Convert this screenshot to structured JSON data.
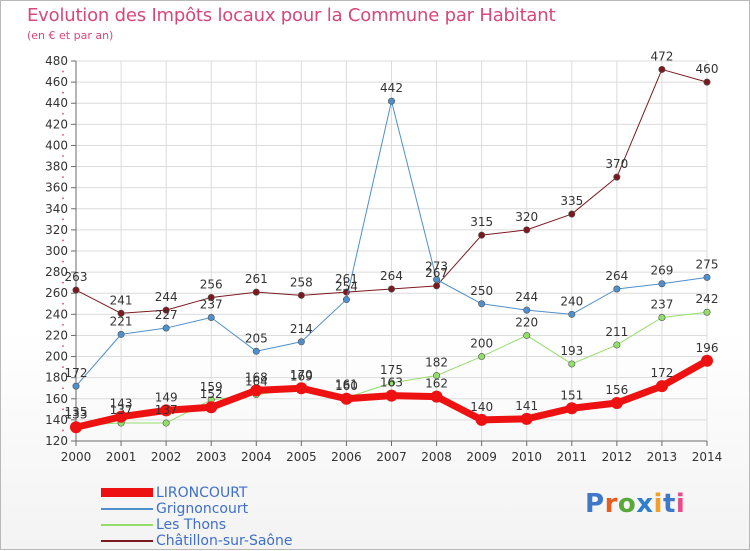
{
  "header": {
    "title": "Evolution des Impôts locaux pour la Commune par Habitant",
    "subtitle": "(en € et par an)"
  },
  "colors": {
    "title": "#d9467a",
    "grid": "#dcdcdc",
    "axis": "#6b6b6b",
    "tick_text": "#333333",
    "legend_text": "#3f6fc9"
  },
  "chart_data": {
    "type": "line",
    "title": "Evolution des Impôts locaux pour la Commune par Habitant",
    "subtitle": "(en € et par an)",
    "xlabel": "",
    "ylabel": "",
    "x": [
      "2000",
      "2001",
      "2002",
      "2003",
      "2004",
      "2005",
      "2006",
      "2007",
      "2008",
      "2009",
      "2010",
      "2011",
      "2012",
      "2013",
      "2014"
    ],
    "ylim": [
      120,
      480
    ],
    "yticks": [
      120,
      140,
      160,
      180,
      200,
      220,
      240,
      260,
      280,
      300,
      320,
      340,
      360,
      380,
      400,
      420,
      440,
      460,
      480
    ],
    "grid": true,
    "legend_position": "bottom-left",
    "series": [
      {
        "name": "Châtillon-sur-Saône",
        "color": "#7a1a1f",
        "width": 1,
        "values": [
          263,
          241,
          244,
          256,
          261,
          258,
          261,
          264,
          267,
          315,
          320,
          335,
          370,
          472,
          460
        ],
        "labels": [
          "263",
          "241",
          "244",
          "256",
          "261",
          "258",
          "261",
          "264",
          "267",
          "315",
          "320",
          "335",
          "370",
          "472",
          "460"
        ]
      },
      {
        "name": "Grignoncourt",
        "color": "#4f8fcc",
        "width": 1,
        "values": [
          172,
          221,
          227,
          237,
          205,
          214,
          254,
          442,
          273,
          250,
          244,
          240,
          264,
          269,
          275
        ],
        "labels": [
          "172",
          "221",
          "227",
          "237",
          "205",
          "214",
          "254",
          "442",
          "273",
          "250",
          "244",
          "240",
          "264",
          "269",
          "275"
        ]
      },
      {
        "name": "Les Thons",
        "color": "#93dd6a",
        "width": 1,
        "values": [
          135,
          137,
          137,
          159,
          164,
          169,
          161,
          175,
          182,
          200,
          220,
          193,
          211,
          237,
          242
        ],
        "labels": [
          "135",
          "137",
          "137",
          "159",
          "164",
          "169",
          "161",
          "175",
          "182",
          "200",
          "220",
          "193",
          "211",
          "237",
          "242"
        ]
      },
      {
        "name": "LIRONCOURT",
        "color": "#ee1111",
        "width": 7,
        "values": [
          133,
          143,
          149,
          152,
          168,
          170,
          160,
          163,
          162,
          140,
          141,
          151,
          156,
          172,
          196
        ],
        "labels": [
          "133",
          "143",
          "149",
          "152",
          "168",
          "170",
          "160",
          "163",
          "162",
          "140",
          "141",
          "151",
          "156",
          "172",
          "196"
        ]
      }
    ]
  },
  "legend": {
    "items": [
      {
        "label": "LIRONCOURT",
        "color": "#ee1111",
        "thickness": 9
      },
      {
        "label": "Grignoncourt",
        "color": "#4f8fcc",
        "thickness": 2
      },
      {
        "label": "Les Thons",
        "color": "#93dd6a",
        "thickness": 2
      },
      {
        "label": "Châtillon-sur-Saône",
        "color": "#7a1a1f",
        "thickness": 2
      }
    ]
  },
  "logo": {
    "text": "Proxiti",
    "letter_colors": [
      "#3f78c9",
      "#e85d1f",
      "#5aa83a",
      "#2e7fcf",
      "#f0a02a",
      "#3f78c9",
      "#e84d8a"
    ]
  }
}
